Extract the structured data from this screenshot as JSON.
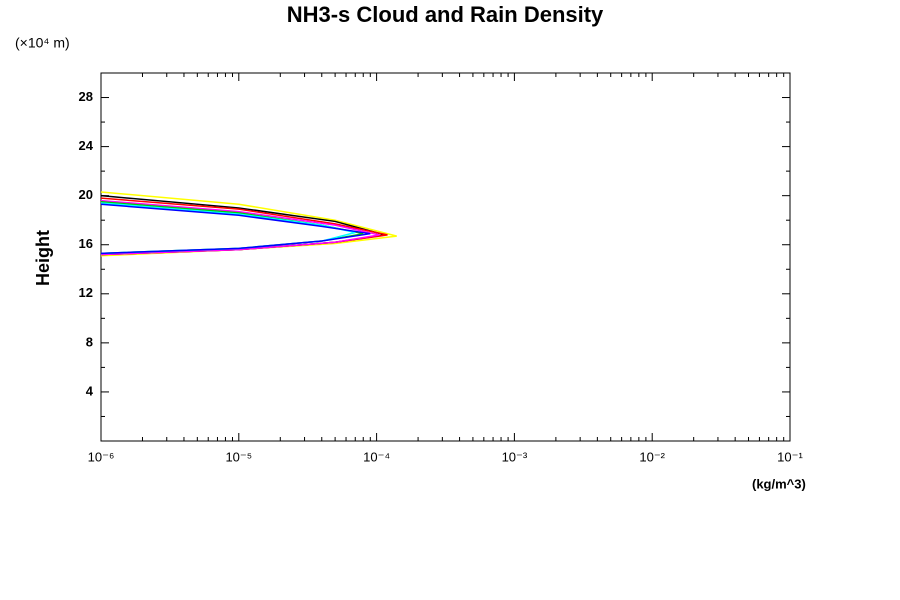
{
  "chart_data": {
    "type": "line",
    "title": "NH3-s Cloud and Rain Density",
    "y_unit": "(×10⁴ m)",
    "x_unit": "(kg/m^3)",
    "ylabel": "Height",
    "xscale": "log",
    "xlim": [
      1e-06,
      0.1
    ],
    "xticks": [
      {
        "value": 1e-06,
        "label": "10⁻⁶"
      },
      {
        "value": 1e-05,
        "label": "10⁻⁵"
      },
      {
        "value": 0.0001,
        "label": "10⁻⁴"
      },
      {
        "value": 0.001,
        "label": "10⁻³"
      },
      {
        "value": 0.01,
        "label": "10⁻²"
      },
      {
        "value": 0.1,
        "label": "10⁻¹"
      }
    ],
    "ylim": [
      0,
      30
    ],
    "yticks": [
      4,
      8,
      12,
      16,
      20,
      24,
      28
    ],
    "series": [
      {
        "color": "#ffff00",
        "x": [
          1e-06,
          1e-05,
          5e-05,
          0.00014,
          5e-05,
          1e-05,
          1e-06
        ],
        "values": [
          20.3,
          19.3,
          18.0,
          16.7,
          16.1,
          15.6,
          15.1
        ]
      },
      {
        "color": "#000000",
        "x": [
          1e-06,
          1e-05,
          5e-05,
          0.000115,
          5e-05,
          1e-05,
          1e-06
        ],
        "values": [
          20.0,
          19.0,
          17.9,
          16.8,
          16.2,
          15.6,
          15.2
        ]
      },
      {
        "color": "#ff0000",
        "x": [
          1e-06,
          1e-05,
          5e-05,
          0.00012,
          5e-05,
          1e-05,
          1e-06
        ],
        "values": [
          19.8,
          18.9,
          17.7,
          16.8,
          16.2,
          15.6,
          15.2
        ]
      },
      {
        "color": "#ff00ff",
        "x": [
          1e-06,
          1e-05,
          5e-05,
          0.000105,
          5e-05,
          1e-05,
          1e-06
        ],
        "values": [
          19.6,
          18.7,
          17.6,
          16.8,
          16.2,
          15.6,
          15.2
        ]
      },
      {
        "color": "#00cc00",
        "x": [
          1e-06,
          1e-05,
          4e-05,
          8e-05,
          4e-05,
          1e-05,
          1e-06
        ],
        "values": [
          19.5,
          18.6,
          17.6,
          16.9,
          16.3,
          15.7,
          15.3
        ]
      },
      {
        "color": "#00ffff",
        "x": [
          1e-06,
          1e-05,
          4e-05,
          7e-05,
          4e-05,
          1e-05,
          1e-06
        ],
        "values": [
          19.4,
          18.5,
          17.6,
          17.0,
          16.3,
          15.7,
          15.3
        ]
      },
      {
        "color": "#0000ff",
        "x": [
          1e-06,
          1e-05,
          4e-05,
          9e-05,
          4e-05,
          1e-05,
          1e-06
        ],
        "values": [
          19.3,
          18.4,
          17.5,
          16.9,
          16.3,
          15.7,
          15.3
        ]
      }
    ]
  }
}
